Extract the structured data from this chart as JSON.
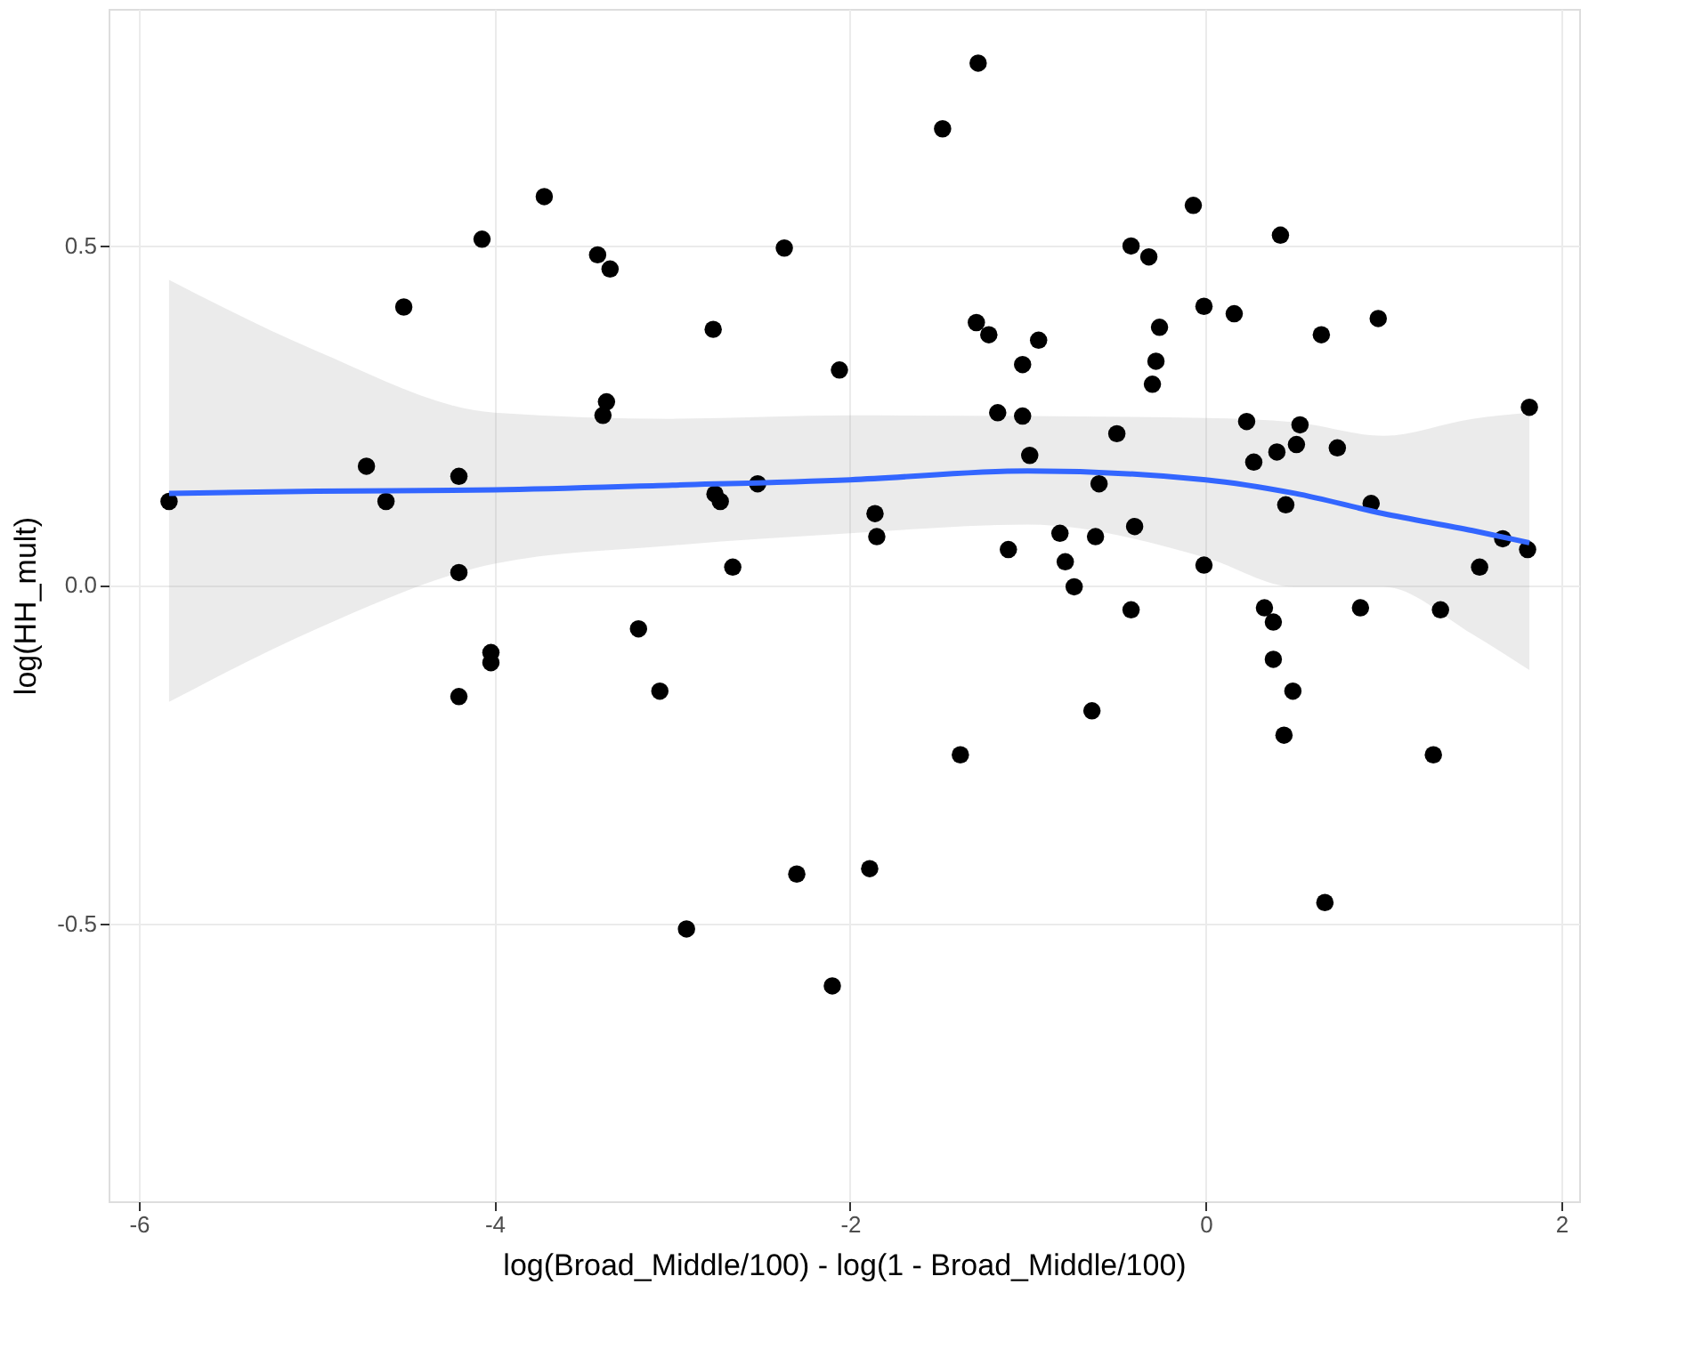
{
  "chart_data": {
    "type": "scatter",
    "xlabel": "log(Broad_Middle/100) - log(1 - Broad_Middle/100)",
    "ylabel": "log(HH_mult)",
    "xlim": [
      -6.17,
      2.1
    ],
    "ylim": [
      -0.91,
      0.85
    ],
    "xticks": [
      {
        "value": -6,
        "label": "-6"
      },
      {
        "value": -4,
        "label": "-4"
      },
      {
        "value": -2,
        "label": "-2"
      },
      {
        "value": 0,
        "label": "0"
      },
      {
        "value": 2,
        "label": "2"
      }
    ],
    "yticks": [
      {
        "value": -0.5,
        "label": "-0.5"
      },
      {
        "value": 0,
        "label": "0.0"
      },
      {
        "value": 0.5,
        "label": "0.5"
      }
    ],
    "grid": true,
    "series": [
      {
        "color": "#000000",
        "marker": "circle",
        "x": [
          -5.83,
          -4.72,
          -4.61,
          -4.51,
          -4.2,
          -4.2,
          -4.2,
          -4.07,
          -4.02,
          -4.02,
          -3.72,
          -3.42,
          -3.35,
          -3.37,
          -3.39,
          -3.19,
          -3.07,
          -2.77,
          -2.76,
          -2.73,
          -2.66,
          -2.92,
          -2.52,
          -2.37,
          -2.3,
          -2.06,
          -2.1,
          -1.89,
          -1.86,
          -1.85,
          -1.48,
          -1.38,
          -1.28,
          -1.29,
          -1.22,
          -1.17,
          -1.03,
          -1.11,
          -0.94,
          -1.03,
          -0.99,
          -0.07,
          0.42,
          -0.42,
          -0.32,
          -0.01,
          0.16,
          0.97,
          -0.26,
          0.65,
          -0.28,
          -0.3,
          1.82,
          0.23,
          0.53,
          -0.5,
          0.51,
          0.4,
          0.74,
          0.27,
          -0.6,
          0.45,
          0.93,
          -0.82,
          -0.62,
          -0.4,
          -0.79,
          -0.74,
          -0.01,
          1.67,
          1.81,
          1.54,
          -0.42,
          0.33,
          0.38,
          0.87,
          1.32,
          0.38,
          0.49,
          0.44,
          -0.64,
          1.28,
          0.67
        ],
        "values": [
          0.123,
          0.175,
          0.123,
          0.41,
          0.16,
          0.018,
          -0.165,
          0.51,
          -0.1,
          -0.115,
          0.573,
          0.487,
          0.466,
          0.27,
          0.25,
          -0.065,
          -0.157,
          0.377,
          0.134,
          0.123,
          0.026,
          -0.508,
          0.149,
          0.497,
          -0.427,
          0.317,
          -0.592,
          -0.419,
          0.105,
          0.071,
          0.673,
          -0.251,
          0.77,
          0.387,
          0.369,
          0.254,
          0.249,
          0.052,
          0.361,
          0.325,
          0.191,
          0.56,
          0.516,
          0.5,
          0.484,
          0.411,
          0.4,
          0.393,
          0.38,
          0.369,
          0.33,
          0.296,
          0.262,
          0.241,
          0.236,
          0.223,
          0.207,
          0.196,
          0.202,
          0.181,
          0.149,
          0.118,
          0.12,
          0.076,
          0.071,
          0.086,
          0.034,
          -0.003,
          0.029,
          0.068,
          0.052,
          0.026,
          -0.037,
          -0.034,
          -0.055,
          -0.034,
          -0.037,
          -0.11,
          -0.157,
          -0.222,
          -0.186,
          -0.251,
          -0.469
        ]
      },
      {
        "type": "line",
        "color": "#3366ff",
        "line_style": "solid",
        "marker": "none",
        "x": [
          -5.83,
          -5,
          -4,
          -3,
          -2,
          -1,
          0,
          0.5,
          1,
          1.5,
          1.82
        ],
        "values": [
          0.135,
          0.138,
          0.14,
          0.147,
          0.155,
          0.168,
          0.155,
          0.135,
          0.105,
          0.08,
          0.062
        ],
        "lower": [
          -0.173,
          -0.065,
          0.031,
          0.058,
          0.076,
          0.089,
          0.04,
          -0.003,
          -0.003,
          -0.073,
          -0.126
        ],
        "upper": [
          0.45,
          0.345,
          0.254,
          0.245,
          0.25,
          0.249,
          0.246,
          0.24,
          0.22,
          0.245,
          0.254
        ]
      }
    ]
  }
}
